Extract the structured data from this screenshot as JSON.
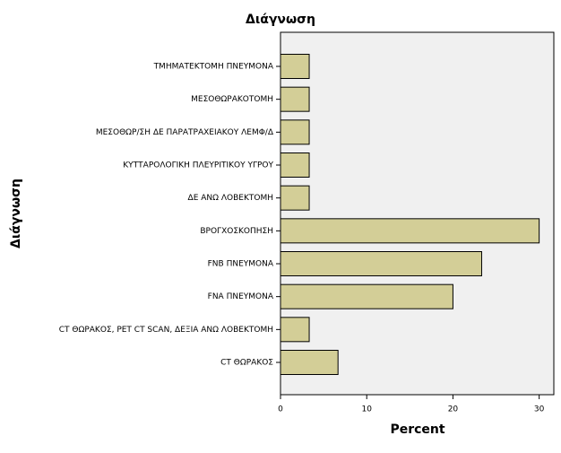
{
  "chart_data": {
    "type": "hbar",
    "title": "Διάγνωση",
    "x_label": "Percent",
    "y_label": "Διάγνωση",
    "categories": [
      "ΤΜΗΜΑΤΕΚΤΟΜΗ ΠΝΕΥΜΟΝΑ",
      "ΜΕΣΟΘΩΡΑΚΟΤΟΜΗ",
      "ΜΕΣΟΘΩΡ/ΣΗ ΔΕ ΠΑΡΑΤΡΑΧΕΙΑΚΟΥ ΛΕΜΦ/Δ",
      "ΚΥΤΤΑΡΟΛΟΓΙΚΗ ΠΛΕΥΡΙΤΙΚΟΥ ΥΓΡΟΥ",
      "ΔΕ ΑΝΩ ΛΟΒΕΚΤΟΜΗ",
      "ΒΡΟΓΧΟΣΚΟΠΗΣΗ",
      "FNB ΠΝΕΥΜΟΝΑ",
      "FNA ΠΝΕΥΜΟΝΑ",
      "CT ΘΩΡΑΚΟΣ, PET CT SCAN, ΔΕΞΙΑ ΑΝΩ ΛΟΒΕΚΤΟΜΗ",
      "CT ΘΩΡΑΚΟΣ"
    ],
    "values": [
      3.33,
      3.33,
      3.33,
      3.33,
      3.33,
      30,
      23.33,
      20,
      3.33,
      6.67
    ],
    "color": "#d3ce97",
    "xlim": [
      0,
      31.7
    ],
    "xticks": [
      0,
      10,
      20,
      30
    ]
  }
}
